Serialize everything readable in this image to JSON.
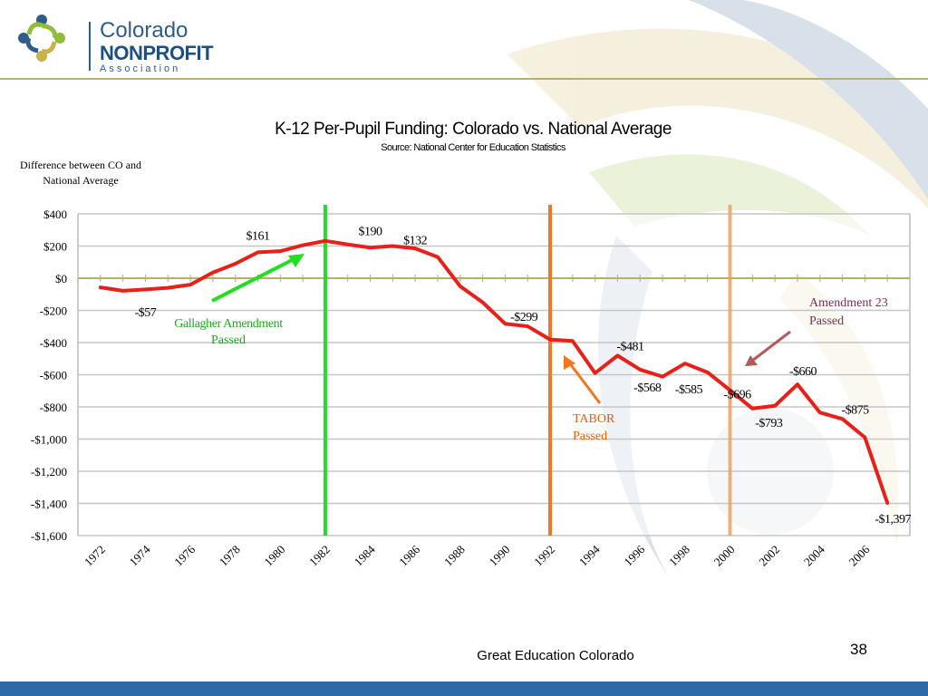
{
  "logo": {
    "line1": "Colorado",
    "line2": "NONPROFIT",
    "line3": "Association",
    "colors": [
      "#2f5d8a",
      "#8fbc3a",
      "#c9b24a"
    ]
  },
  "footer": {
    "text": "Great Education Colorado",
    "page_number": "38"
  },
  "colors": {
    "line": "#e8201a",
    "gallagher": "#22dd22",
    "tabor": "#f07820",
    "amendment23": "#f0a060",
    "amendment23_text": "#7b2d5a",
    "amendment23_arrow": "#b05a5a",
    "header_rule": "#b8b06a",
    "bottom_bar": "#2e6aa8"
  },
  "chart_data": {
    "type": "line",
    "title": "K-12 Per-Pupil Funding: Colorado vs. National Average",
    "subtitle": "Source:  National Center for Education Statistics",
    "ylabel": "Difference  between CO and National  Average",
    "ylim": [
      -1600,
      400
    ],
    "yticks": [
      400,
      200,
      0,
      -200,
      -400,
      -600,
      -800,
      -1000,
      -1200,
      -1400,
      -1600
    ],
    "ytick_labels": [
      "$400",
      "$200",
      "$0",
      "-$200",
      "-$400",
      "-$600",
      "-$800",
      "-$1,000",
      "-$1,200",
      "-$1,400",
      "-$1,600"
    ],
    "xlim": [
      1972,
      2007
    ],
    "xticks": [
      1972,
      1974,
      1976,
      1978,
      1980,
      1982,
      1984,
      1986,
      1988,
      1990,
      1992,
      1994,
      1996,
      1998,
      2000,
      2002,
      2004,
      2006
    ],
    "grid": true,
    "series": [
      {
        "x": [
          1972,
          1973,
          1974,
          1975,
          1976,
          1977,
          1978,
          1979,
          1980,
          1981,
          1982,
          1983,
          1984,
          1985,
          1986,
          1987,
          1988,
          1989,
          1990,
          1991,
          1992,
          1993,
          1994,
          1995,
          1996,
          1997,
          1998,
          1999,
          2000,
          2001,
          2002,
          2003,
          2004,
          2005,
          2006,
          2007
        ],
        "y": [
          -57,
          -78,
          -70,
          -60,
          -40,
          35,
          90,
          161,
          168,
          205,
          232,
          210,
          190,
          200,
          185,
          132,
          -50,
          -150,
          -283,
          -299,
          -381,
          -390,
          -590,
          -481,
          -568,
          -612,
          -530,
          -585,
          -696,
          -810,
          -793,
          -660,
          -835,
          -875,
          -990,
          -1397
        ]
      }
    ],
    "data_labels": [
      {
        "text": "-$57",
        "x": 1974,
        "y": -57
      },
      {
        "text": "$161",
        "x": 1979,
        "y": 161
      },
      {
        "text": "$190",
        "x": 1984,
        "y": 190
      },
      {
        "text": "$132",
        "x": 1986,
        "y": 132
      },
      {
        "text": "-$299",
        "x": 1991,
        "y": -299
      },
      {
        "text": "-$481",
        "x": 1995,
        "y": -481
      },
      {
        "text": "-$568",
        "x": 1996,
        "y": -568
      },
      {
        "text": "-$585",
        "x": 1998,
        "y": -585
      },
      {
        "text": "-$696",
        "x": 2000,
        "y": -696
      },
      {
        "text": "-$660",
        "x": 2003,
        "y": -660
      },
      {
        "text": "-$793",
        "x": 2001,
        "y": -793
      },
      {
        "text": "-$875",
        "x": 2005,
        "y": -875
      },
      {
        "text": "-$1,397",
        "x": 2007,
        "y": -1397
      }
    ],
    "events": [
      {
        "year": 1982,
        "label": [
          "Gallagher Amendment",
          "Passed"
        ],
        "color": "#22dd22"
      },
      {
        "year": 1992,
        "label": [
          "TABOR",
          "Passed"
        ],
        "color": "#f07820"
      },
      {
        "year": 2000,
        "label": [
          "Amendment 23",
          "Passed"
        ],
        "color": "#f0a060"
      }
    ]
  }
}
